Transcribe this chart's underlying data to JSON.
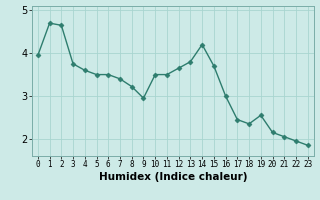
{
  "x": [
    0,
    1,
    2,
    3,
    4,
    5,
    6,
    7,
    8,
    9,
    10,
    11,
    12,
    13,
    14,
    15,
    16,
    17,
    18,
    19,
    20,
    21,
    22,
    23
  ],
  "y": [
    3.95,
    4.7,
    4.65,
    3.75,
    3.6,
    3.5,
    3.5,
    3.4,
    3.22,
    2.95,
    3.5,
    3.5,
    3.65,
    3.8,
    4.2,
    3.7,
    3.0,
    2.45,
    2.35,
    2.55,
    2.15,
    2.05,
    1.95,
    1.85
  ],
  "line_color": "#2e7d6e",
  "marker": "D",
  "marker_size": 2.5,
  "linewidth": 1.0,
  "bg_color": "#cdeae7",
  "grid_color": "#a8d5d0",
  "xlabel": "Humidex (Indice chaleur)",
  "ylim": [
    1.6,
    5.1
  ],
  "yticks": [
    2,
    3,
    4,
    5
  ],
  "xlabel_fontsize": 7.5,
  "ytick_fontsize": 7,
  "xtick_fontsize": 5.5
}
